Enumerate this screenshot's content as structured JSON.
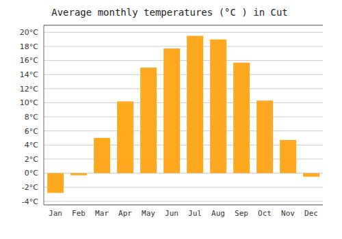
{
  "chart_data": {
    "type": "bar",
    "title": "Average monthly temperatures (°C ) in Cut",
    "categories": [
      "Jan",
      "Feb",
      "Mar",
      "Apr",
      "May",
      "Jun",
      "Jul",
      "Aug",
      "Sep",
      "Oct",
      "Nov",
      "Dec"
    ],
    "values": [
      -2.8,
      -0.3,
      5.0,
      10.2,
      15.0,
      17.7,
      19.5,
      19.0,
      15.7,
      10.3,
      4.7,
      -0.5
    ],
    "color": "#FFA820",
    "ylim": [
      -4.5,
      21
    ],
    "yticks": [
      {
        "value": -4,
        "label": "-4°C"
      },
      {
        "value": -2,
        "label": "-2°C"
      },
      {
        "value": 0,
        "label": "0°C"
      },
      {
        "value": 2,
        "label": "2°C"
      },
      {
        "value": 4,
        "label": "4°C"
      },
      {
        "value": 6,
        "label": "6°C"
      },
      {
        "value": 8,
        "label": "8°C"
      },
      {
        "value": 10,
        "label": "10°C"
      },
      {
        "value": 12,
        "label": "12°C"
      },
      {
        "value": 14,
        "label": "14°C"
      },
      {
        "value": 16,
        "label": "16°C"
      },
      {
        "value": 18,
        "label": "18°C"
      },
      {
        "value": 20,
        "label": "20°C"
      }
    ],
    "grid": true
  }
}
